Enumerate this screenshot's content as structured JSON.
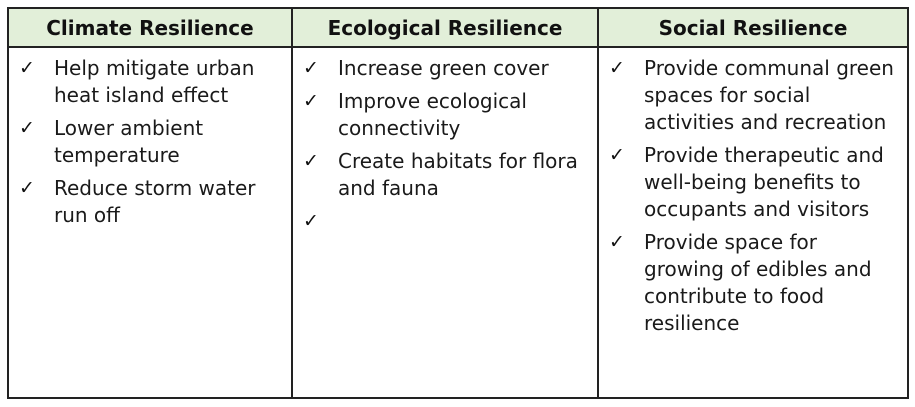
{
  "headers": [
    "Climate Resilience",
    "Ecological Resilience",
    "Social Resilience"
  ],
  "check_glyph": "✓",
  "columns": [
    {
      "items": [
        "Help mitigate urban heat island effect",
        "Lower ambient temperature",
        "Reduce storm water run off"
      ]
    },
    {
      "items": [
        "Increase green cover",
        "Improve ecological connectivity",
        "Create habitats for flora and fauna",
        ""
      ]
    },
    {
      "items": [
        "Provide communal green spaces for social activities and recreation",
        "Provide therapeutic and well-being benefits to occupants and visitors",
        "Provide space for growing of edibles and contribute to food resilience"
      ]
    }
  ],
  "colors": {
    "header_background": "#e2efd9",
    "border": "#222222",
    "text": "#1a1a1a"
  }
}
